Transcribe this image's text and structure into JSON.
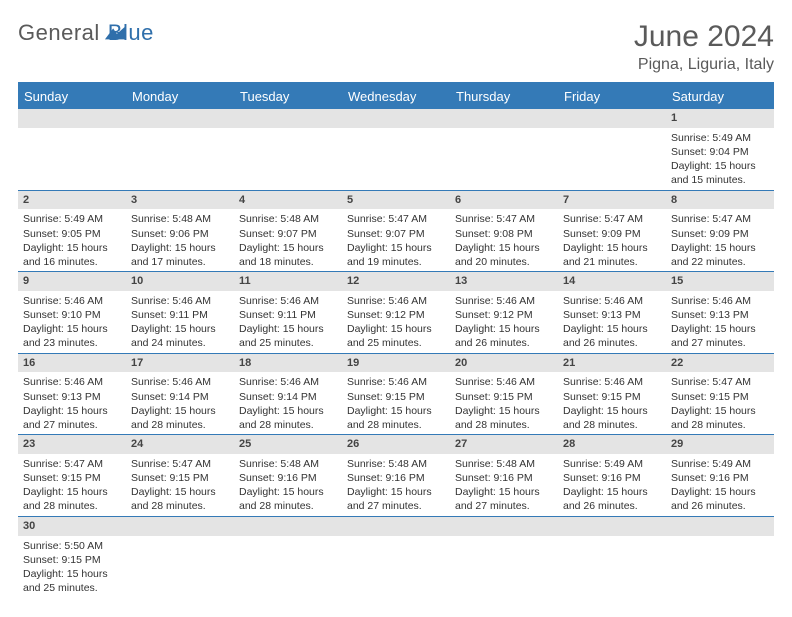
{
  "brand": {
    "word1": "General",
    "word2": "Blue"
  },
  "title": "June 2024",
  "location": "Pigna, Liguria, Italy",
  "header_color": "#347ab7",
  "dayHeaders": [
    "Sunday",
    "Monday",
    "Tuesday",
    "Wednesday",
    "Thursday",
    "Friday",
    "Saturday"
  ],
  "weeks": [
    [
      null,
      null,
      null,
      null,
      null,
      null,
      {
        "n": "1",
        "sr": "5:49 AM",
        "ss": "9:04 PM",
        "dl": "15 hours and 15 minutes."
      }
    ],
    [
      {
        "n": "2",
        "sr": "5:49 AM",
        "ss": "9:05 PM",
        "dl": "15 hours and 16 minutes."
      },
      {
        "n": "3",
        "sr": "5:48 AM",
        "ss": "9:06 PM",
        "dl": "15 hours and 17 minutes."
      },
      {
        "n": "4",
        "sr": "5:48 AM",
        "ss": "9:07 PM",
        "dl": "15 hours and 18 minutes."
      },
      {
        "n": "5",
        "sr": "5:47 AM",
        "ss": "9:07 PM",
        "dl": "15 hours and 19 minutes."
      },
      {
        "n": "6",
        "sr": "5:47 AM",
        "ss": "9:08 PM",
        "dl": "15 hours and 20 minutes."
      },
      {
        "n": "7",
        "sr": "5:47 AM",
        "ss": "9:09 PM",
        "dl": "15 hours and 21 minutes."
      },
      {
        "n": "8",
        "sr": "5:47 AM",
        "ss": "9:09 PM",
        "dl": "15 hours and 22 minutes."
      }
    ],
    [
      {
        "n": "9",
        "sr": "5:46 AM",
        "ss": "9:10 PM",
        "dl": "15 hours and 23 minutes."
      },
      {
        "n": "10",
        "sr": "5:46 AM",
        "ss": "9:11 PM",
        "dl": "15 hours and 24 minutes."
      },
      {
        "n": "11",
        "sr": "5:46 AM",
        "ss": "9:11 PM",
        "dl": "15 hours and 25 minutes."
      },
      {
        "n": "12",
        "sr": "5:46 AM",
        "ss": "9:12 PM",
        "dl": "15 hours and 25 minutes."
      },
      {
        "n": "13",
        "sr": "5:46 AM",
        "ss": "9:12 PM",
        "dl": "15 hours and 26 minutes."
      },
      {
        "n": "14",
        "sr": "5:46 AM",
        "ss": "9:13 PM",
        "dl": "15 hours and 26 minutes."
      },
      {
        "n": "15",
        "sr": "5:46 AM",
        "ss": "9:13 PM",
        "dl": "15 hours and 27 minutes."
      }
    ],
    [
      {
        "n": "16",
        "sr": "5:46 AM",
        "ss": "9:13 PM",
        "dl": "15 hours and 27 minutes."
      },
      {
        "n": "17",
        "sr": "5:46 AM",
        "ss": "9:14 PM",
        "dl": "15 hours and 28 minutes."
      },
      {
        "n": "18",
        "sr": "5:46 AM",
        "ss": "9:14 PM",
        "dl": "15 hours and 28 minutes."
      },
      {
        "n": "19",
        "sr": "5:46 AM",
        "ss": "9:15 PM",
        "dl": "15 hours and 28 minutes."
      },
      {
        "n": "20",
        "sr": "5:46 AM",
        "ss": "9:15 PM",
        "dl": "15 hours and 28 minutes."
      },
      {
        "n": "21",
        "sr": "5:46 AM",
        "ss": "9:15 PM",
        "dl": "15 hours and 28 minutes."
      },
      {
        "n": "22",
        "sr": "5:47 AM",
        "ss": "9:15 PM",
        "dl": "15 hours and 28 minutes."
      }
    ],
    [
      {
        "n": "23",
        "sr": "5:47 AM",
        "ss": "9:15 PM",
        "dl": "15 hours and 28 minutes."
      },
      {
        "n": "24",
        "sr": "5:47 AM",
        "ss": "9:15 PM",
        "dl": "15 hours and 28 minutes."
      },
      {
        "n": "25",
        "sr": "5:48 AM",
        "ss": "9:16 PM",
        "dl": "15 hours and 28 minutes."
      },
      {
        "n": "26",
        "sr": "5:48 AM",
        "ss": "9:16 PM",
        "dl": "15 hours and 27 minutes."
      },
      {
        "n": "27",
        "sr": "5:48 AM",
        "ss": "9:16 PM",
        "dl": "15 hours and 27 minutes."
      },
      {
        "n": "28",
        "sr": "5:49 AM",
        "ss": "9:16 PM",
        "dl": "15 hours and 26 minutes."
      },
      {
        "n": "29",
        "sr": "5:49 AM",
        "ss": "9:16 PM",
        "dl": "15 hours and 26 minutes."
      }
    ],
    [
      {
        "n": "30",
        "sr": "5:50 AM",
        "ss": "9:15 PM",
        "dl": "15 hours and 25 minutes."
      },
      null,
      null,
      null,
      null,
      null,
      null
    ]
  ],
  "labels": {
    "sunrise": "Sunrise:",
    "sunset": "Sunset:",
    "daylight": "Daylight:"
  }
}
